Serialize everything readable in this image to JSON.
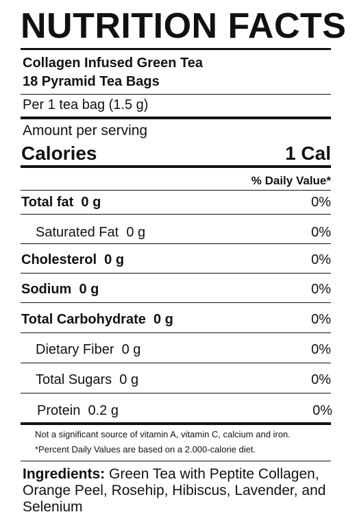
{
  "title": "NUTRITION FACTS",
  "product": {
    "name": "Collagen Infused Green Tea",
    "count": "18 Pyramid Tea Bags"
  },
  "serving": "Per 1 tea bag (1.5 g)",
  "amount_per_serving": "Amount per serving",
  "calories": {
    "label": "Calories",
    "value": "1 Cal"
  },
  "daily_value_header": "% Daily Value*",
  "nutrients": [
    {
      "name": "Total fat",
      "amount": "0 g",
      "dv": "0%"
    },
    {
      "name": "Saturated Fat",
      "amount": "0 g",
      "dv": "0%"
    },
    {
      "name": "Cholesterol",
      "amount": "0 g",
      "dv": "0%"
    },
    {
      "name": "Sodium",
      "amount": "0 g",
      "dv": "0%"
    },
    {
      "name": "Total Carbohydrate",
      "amount": "0 g",
      "dv": "0%"
    },
    {
      "name": "Dietary Fiber",
      "amount": "0 g",
      "dv": "0%"
    },
    {
      "name": "Total Sugars",
      "amount": "0 g",
      "dv": "0%"
    },
    {
      "name": "Protein",
      "amount": "0.2 g",
      "dv": "0%"
    }
  ],
  "footnotes": [
    "Not a significant source of vitamin A, vitamin C, calcium and iron.",
    "*Percent Daily Values are based on a 2.000-calorie diet."
  ],
  "ingredients": {
    "heading": "Ingredients:",
    "text": "Green Tea with Peptite Collagen, Orange Peel, Rosehip, Hibiscus, Lavender, and Selenium"
  }
}
